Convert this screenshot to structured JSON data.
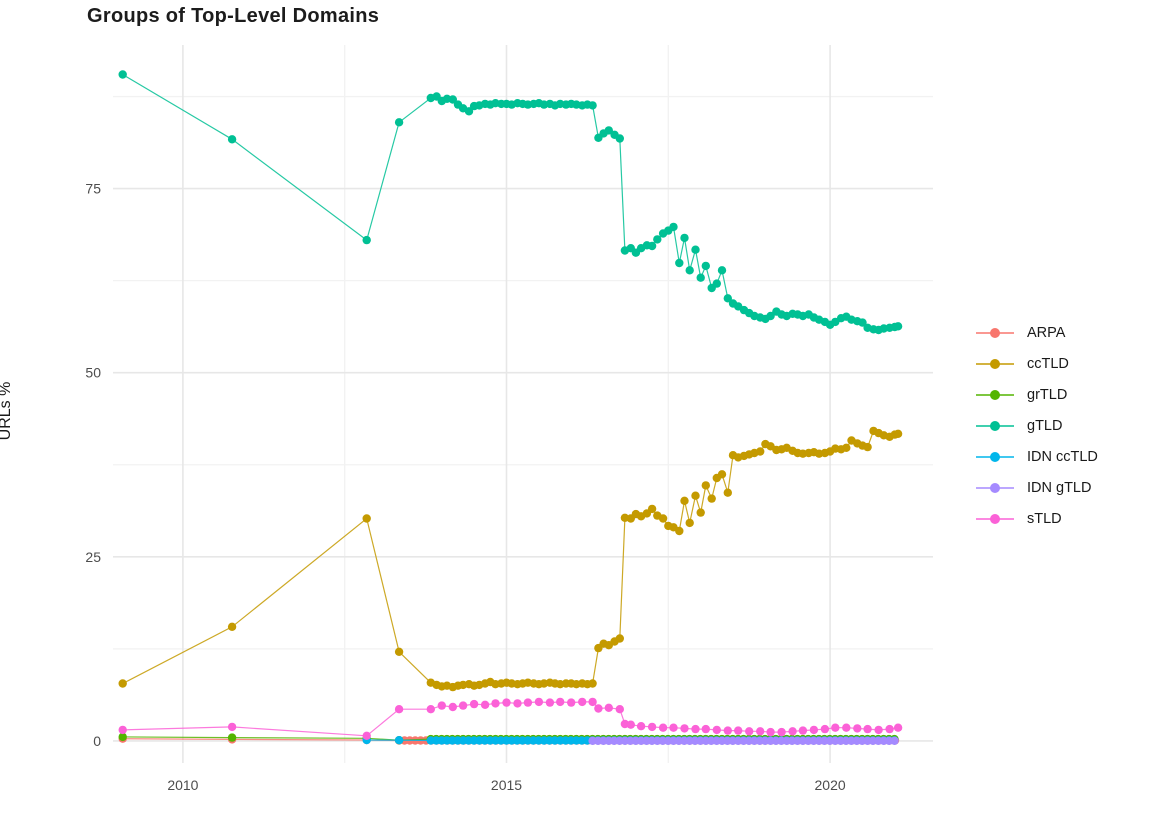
{
  "chart": {
    "title": "Groups of Top-Level Domains",
    "ylabel": "URLs %"
  },
  "chart_data": {
    "type": "line",
    "title": "Groups of Top-Level Domains",
    "xlabel": "",
    "ylabel": "URLs %",
    "x_ticks": [
      2010,
      2015,
      2020
    ],
    "x_minor_ticks": [
      2012.5,
      2017.5
    ],
    "y_ticks": [
      0,
      25,
      50,
      75
    ],
    "y_minor_ticks": [
      12.5,
      37.5,
      62.5,
      87.5
    ],
    "x_range": [
      2008.92,
      2021.59
    ],
    "y_range": [
      -3,
      94.5
    ],
    "grid": true,
    "legend_position": "right",
    "legend_items": [
      "ARPA",
      "ccTLD",
      "grTLD",
      "gTLD",
      "IDN ccTLD",
      "IDN gTLD",
      "sTLD"
    ],
    "series": [
      {
        "name": "ARPA",
        "color": "#F8766D",
        "points": [
          [
            2009.07,
            0.3
          ],
          [
            2010.76,
            0.2
          ],
          [
            2012.84,
            0.12
          ]
        ],
        "runs": [
          {
            "from": 2013.34,
            "to": 2021.05,
            "step": 0.0833,
            "y": 0.05
          }
        ]
      },
      {
        "name": "ccTLD",
        "color": "#C49A00",
        "points": [
          [
            2009.07,
            7.8
          ],
          [
            2010.76,
            15.5
          ],
          [
            2012.84,
            30.2
          ],
          [
            2013.34,
            12.1
          ],
          [
            2013.83,
            7.9
          ],
          [
            2013.92,
            7.6
          ],
          [
            2014.0,
            7.4
          ],
          [
            2014.08,
            7.5
          ],
          [
            2014.17,
            7.3
          ],
          [
            2014.25,
            7.5
          ],
          [
            2014.33,
            7.6
          ],
          [
            2014.42,
            7.7
          ],
          [
            2014.5,
            7.5
          ],
          [
            2014.58,
            7.6
          ],
          [
            2014.67,
            7.8
          ],
          [
            2014.75,
            8.0
          ],
          [
            2014.83,
            7.7
          ],
          [
            2014.92,
            7.8
          ],
          [
            2015.0,
            7.9
          ],
          [
            2015.08,
            7.8
          ],
          [
            2015.17,
            7.7
          ],
          [
            2015.25,
            7.8
          ],
          [
            2015.33,
            7.9
          ],
          [
            2015.42,
            7.8
          ],
          [
            2015.5,
            7.7
          ],
          [
            2015.58,
            7.8
          ],
          [
            2015.67,
            7.9
          ],
          [
            2015.75,
            7.8
          ],
          [
            2015.83,
            7.7
          ],
          [
            2015.92,
            7.8
          ],
          [
            2016.0,
            7.8
          ],
          [
            2016.08,
            7.7
          ],
          [
            2016.17,
            7.8
          ],
          [
            2016.25,
            7.7
          ],
          [
            2016.33,
            7.8
          ],
          [
            2016.42,
            12.6
          ],
          [
            2016.5,
            13.2
          ],
          [
            2016.58,
            13.0
          ],
          [
            2016.67,
            13.5
          ],
          [
            2016.75,
            13.9
          ],
          [
            2016.83,
            30.3
          ],
          [
            2016.92,
            30.2
          ],
          [
            2017.0,
            30.8
          ],
          [
            2017.08,
            30.5
          ],
          [
            2017.17,
            30.9
          ],
          [
            2017.25,
            31.5
          ],
          [
            2017.33,
            30.6
          ],
          [
            2017.42,
            30.2
          ],
          [
            2017.5,
            29.2
          ],
          [
            2017.58,
            29.0
          ],
          [
            2017.67,
            28.5
          ],
          [
            2017.75,
            32.6
          ],
          [
            2017.83,
            29.6
          ],
          [
            2017.92,
            33.3
          ],
          [
            2018.0,
            31.0
          ],
          [
            2018.08,
            34.7
          ],
          [
            2018.17,
            32.9
          ],
          [
            2018.25,
            35.7
          ],
          [
            2018.33,
            36.2
          ],
          [
            2018.42,
            33.7
          ],
          [
            2018.5,
            38.8
          ],
          [
            2018.58,
            38.5
          ],
          [
            2018.67,
            38.7
          ],
          [
            2018.75,
            38.9
          ],
          [
            2018.83,
            39.1
          ],
          [
            2018.92,
            39.3
          ],
          [
            2019.0,
            40.3
          ],
          [
            2019.08,
            40.0
          ],
          [
            2019.17,
            39.5
          ],
          [
            2019.25,
            39.6
          ],
          [
            2019.33,
            39.8
          ],
          [
            2019.42,
            39.4
          ],
          [
            2019.5,
            39.1
          ],
          [
            2019.58,
            39.0
          ],
          [
            2019.67,
            39.1
          ],
          [
            2019.75,
            39.2
          ],
          [
            2019.83,
            39.0
          ],
          [
            2019.92,
            39.1
          ],
          [
            2020.0,
            39.3
          ],
          [
            2020.08,
            39.7
          ],
          [
            2020.17,
            39.6
          ],
          [
            2020.25,
            39.8
          ],
          [
            2020.33,
            40.8
          ],
          [
            2020.42,
            40.4
          ],
          [
            2020.5,
            40.1
          ],
          [
            2020.58,
            39.9
          ],
          [
            2020.67,
            42.1
          ],
          [
            2020.75,
            41.8
          ],
          [
            2020.83,
            41.5
          ],
          [
            2020.92,
            41.3
          ],
          [
            2021.0,
            41.6
          ],
          [
            2021.05,
            41.7
          ]
        ]
      },
      {
        "name": "grTLD",
        "color": "#53B400",
        "points": [
          [
            2009.07,
            0.55
          ],
          [
            2010.76,
            0.45
          ],
          [
            2012.84,
            0.35
          ],
          [
            2013.34,
            0.1
          ]
        ],
        "runs": [
          {
            "from": 2013.83,
            "to": 2021.05,
            "step": 0.0833,
            "y": 0.25
          }
        ]
      },
      {
        "name": "gTLD",
        "color": "#00C094",
        "points": [
          [
            2009.07,
            90.5
          ],
          [
            2010.76,
            81.7
          ],
          [
            2012.84,
            68.0
          ],
          [
            2013.34,
            84.0
          ],
          [
            2013.83,
            87.3
          ],
          [
            2013.92,
            87.5
          ],
          [
            2014.0,
            86.9
          ],
          [
            2014.08,
            87.2
          ],
          [
            2014.17,
            87.1
          ],
          [
            2014.25,
            86.4
          ],
          [
            2014.33,
            85.9
          ],
          [
            2014.42,
            85.5
          ],
          [
            2014.5,
            86.2
          ],
          [
            2014.58,
            86.3
          ],
          [
            2014.67,
            86.5
          ],
          [
            2014.75,
            86.4
          ],
          [
            2014.83,
            86.6
          ],
          [
            2014.92,
            86.5
          ],
          [
            2015.0,
            86.5
          ],
          [
            2015.08,
            86.4
          ],
          [
            2015.17,
            86.6
          ],
          [
            2015.25,
            86.5
          ],
          [
            2015.33,
            86.4
          ],
          [
            2015.42,
            86.5
          ],
          [
            2015.5,
            86.6
          ],
          [
            2015.58,
            86.4
          ],
          [
            2015.67,
            86.5
          ],
          [
            2015.75,
            86.3
          ],
          [
            2015.83,
            86.5
          ],
          [
            2015.92,
            86.4
          ],
          [
            2016.0,
            86.5
          ],
          [
            2016.08,
            86.4
          ],
          [
            2016.17,
            86.3
          ],
          [
            2016.25,
            86.4
          ],
          [
            2016.33,
            86.3
          ],
          [
            2016.42,
            81.9
          ],
          [
            2016.5,
            82.5
          ],
          [
            2016.58,
            82.9
          ],
          [
            2016.67,
            82.3
          ],
          [
            2016.75,
            81.8
          ],
          [
            2016.83,
            66.6
          ],
          [
            2016.92,
            66.9
          ],
          [
            2017.0,
            66.3
          ],
          [
            2017.08,
            66.9
          ],
          [
            2017.17,
            67.3
          ],
          [
            2017.25,
            67.2
          ],
          [
            2017.33,
            68.1
          ],
          [
            2017.42,
            68.9
          ],
          [
            2017.5,
            69.3
          ],
          [
            2017.58,
            69.8
          ],
          [
            2017.67,
            64.9
          ],
          [
            2017.75,
            68.3
          ],
          [
            2017.83,
            63.9
          ],
          [
            2017.92,
            66.7
          ],
          [
            2018.0,
            62.9
          ],
          [
            2018.08,
            64.5
          ],
          [
            2018.17,
            61.5
          ],
          [
            2018.25,
            62.1
          ],
          [
            2018.33,
            63.9
          ],
          [
            2018.42,
            60.1
          ],
          [
            2018.5,
            59.4
          ],
          [
            2018.58,
            59.0
          ],
          [
            2018.67,
            58.5
          ],
          [
            2018.75,
            58.1
          ],
          [
            2018.83,
            57.7
          ],
          [
            2018.92,
            57.5
          ],
          [
            2019.0,
            57.3
          ],
          [
            2019.08,
            57.7
          ],
          [
            2019.17,
            58.3
          ],
          [
            2019.25,
            57.9
          ],
          [
            2019.33,
            57.7
          ],
          [
            2019.42,
            58.0
          ],
          [
            2019.5,
            57.9
          ],
          [
            2019.58,
            57.7
          ],
          [
            2019.67,
            57.9
          ],
          [
            2019.75,
            57.5
          ],
          [
            2019.83,
            57.2
          ],
          [
            2019.92,
            56.9
          ],
          [
            2020.0,
            56.5
          ],
          [
            2020.08,
            56.9
          ],
          [
            2020.17,
            57.4
          ],
          [
            2020.25,
            57.6
          ],
          [
            2020.33,
            57.2
          ],
          [
            2020.42,
            57.0
          ],
          [
            2020.5,
            56.8
          ],
          [
            2020.58,
            56.1
          ],
          [
            2020.67,
            55.9
          ],
          [
            2020.75,
            55.8
          ],
          [
            2020.83,
            56.0
          ],
          [
            2020.92,
            56.1
          ],
          [
            2021.0,
            56.2
          ],
          [
            2021.05,
            56.3
          ]
        ]
      },
      {
        "name": "IDN ccTLD",
        "color": "#00B6EB",
        "points": [
          [
            2012.84,
            0.12
          ],
          [
            2013.34,
            0.1
          ]
        ],
        "runs": [
          {
            "from": 2013.83,
            "to": 2021.05,
            "step": 0.0833,
            "y": 0.06
          }
        ]
      },
      {
        "name": "IDN gTLD",
        "color": "#A58AFF",
        "points": [],
        "runs": [
          {
            "from": 2016.33,
            "to": 2021.05,
            "step": 0.0833,
            "y": 0.02
          }
        ]
      },
      {
        "name": "sTLD",
        "color": "#FB61D7",
        "points": [
          [
            2009.07,
            1.5
          ],
          [
            2010.76,
            1.9
          ],
          [
            2012.84,
            0.7
          ],
          [
            2013.34,
            4.3
          ],
          [
            2013.83,
            4.3
          ],
          [
            2014.0,
            4.8
          ],
          [
            2014.17,
            4.6
          ],
          [
            2014.33,
            4.8
          ],
          [
            2014.5,
            5.0
          ],
          [
            2014.67,
            4.9
          ],
          [
            2014.83,
            5.1
          ],
          [
            2015.0,
            5.2
          ],
          [
            2015.17,
            5.1
          ],
          [
            2015.33,
            5.2
          ],
          [
            2015.5,
            5.3
          ],
          [
            2015.67,
            5.2
          ],
          [
            2015.83,
            5.3
          ],
          [
            2016.0,
            5.2
          ],
          [
            2016.17,
            5.3
          ],
          [
            2016.33,
            5.3
          ],
          [
            2016.42,
            4.4
          ],
          [
            2016.58,
            4.5
          ],
          [
            2016.75,
            4.3
          ],
          [
            2016.83,
            2.3
          ],
          [
            2016.92,
            2.2
          ],
          [
            2017.08,
            2.0
          ],
          [
            2017.25,
            1.9
          ],
          [
            2017.42,
            1.8
          ],
          [
            2017.58,
            1.8
          ],
          [
            2017.75,
            1.7
          ],
          [
            2017.92,
            1.6
          ],
          [
            2018.08,
            1.6
          ],
          [
            2018.25,
            1.5
          ],
          [
            2018.42,
            1.4
          ],
          [
            2018.58,
            1.4
          ],
          [
            2018.75,
            1.3
          ],
          [
            2018.92,
            1.3
          ],
          [
            2019.08,
            1.2
          ],
          [
            2019.25,
            1.2
          ],
          [
            2019.42,
            1.3
          ],
          [
            2019.58,
            1.4
          ],
          [
            2019.75,
            1.5
          ],
          [
            2019.92,
            1.6
          ],
          [
            2020.08,
            1.8
          ],
          [
            2020.25,
            1.8
          ],
          [
            2020.42,
            1.7
          ],
          [
            2020.58,
            1.6
          ],
          [
            2020.75,
            1.5
          ],
          [
            2020.92,
            1.6
          ],
          [
            2021.05,
            1.8
          ]
        ]
      }
    ]
  }
}
